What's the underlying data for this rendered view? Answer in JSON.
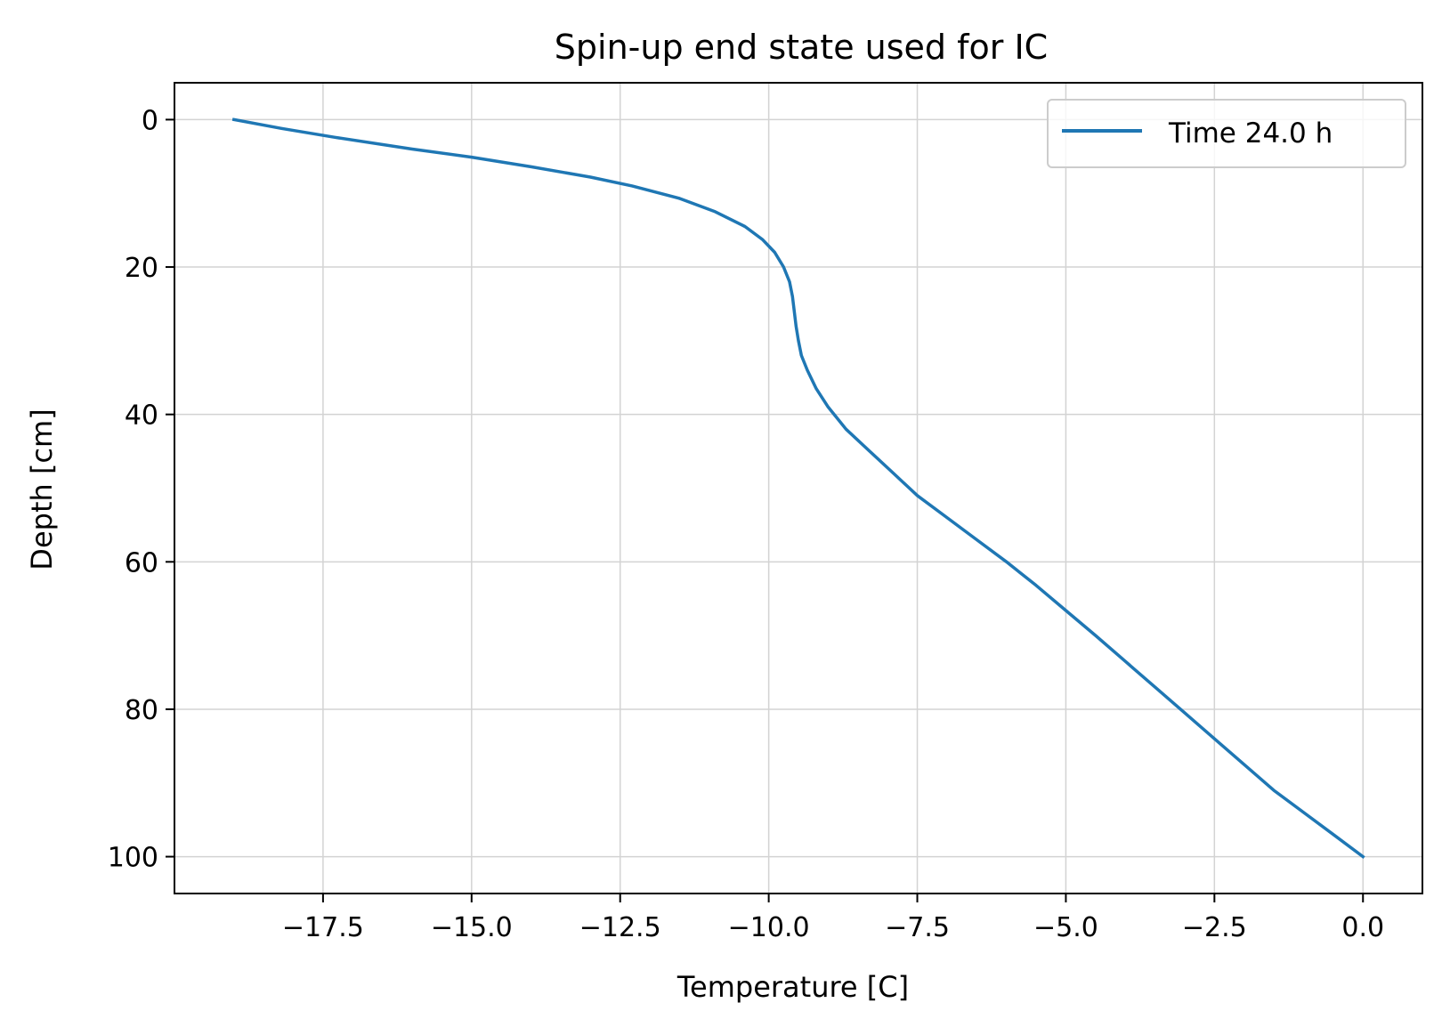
{
  "chart_data": {
    "type": "line",
    "title": "Spin-up end state used for IC",
    "xlabel": "Temperature [C]",
    "ylabel": "Depth [cm]",
    "xlim": [
      -20.0,
      1.0
    ],
    "ylim": [
      105,
      -5
    ],
    "y_inverted": true,
    "grid": true,
    "legend_position": "top-right",
    "x_ticks": [
      -17.5,
      -15.0,
      -12.5,
      -10.0,
      -7.5,
      -5.0,
      -2.5,
      0.0
    ],
    "x_tick_labels": [
      "−17.5",
      "−15.0",
      "−12.5",
      "−10.0",
      "−7.5",
      "−5.0",
      "−2.5",
      "0.0"
    ],
    "y_ticks": [
      0,
      20,
      40,
      60,
      80,
      100
    ],
    "y_tick_labels": [
      "0",
      "20",
      "40",
      "60",
      "80",
      "100"
    ],
    "series": [
      {
        "name": "Time 24.0 h",
        "color": "#1f77b4",
        "points": [
          [
            -19.0,
            0
          ],
          [
            -18.2,
            1.2
          ],
          [
            -17.3,
            2.4
          ],
          [
            -16.0,
            4.0
          ],
          [
            -15.0,
            5.1
          ],
          [
            -14.0,
            6.4
          ],
          [
            -13.0,
            7.8
          ],
          [
            -12.3,
            9.0
          ],
          [
            -11.5,
            10.7
          ],
          [
            -10.9,
            12.5
          ],
          [
            -10.4,
            14.5
          ],
          [
            -10.1,
            16.3
          ],
          [
            -9.9,
            18.0
          ],
          [
            -9.75,
            20.0
          ],
          [
            -9.65,
            22.0
          ],
          [
            -9.6,
            24.0
          ],
          [
            -9.57,
            26.0
          ],
          [
            -9.54,
            28.0
          ],
          [
            -9.5,
            30.0
          ],
          [
            -9.45,
            32.0
          ],
          [
            -9.35,
            34.0
          ],
          [
            -9.2,
            36.5
          ],
          [
            -9.0,
            39.0
          ],
          [
            -8.7,
            42.0
          ],
          [
            -8.3,
            45.0
          ],
          [
            -7.9,
            48.0
          ],
          [
            -7.5,
            51.0
          ],
          [
            -7.0,
            54.0
          ],
          [
            -6.5,
            57.0
          ],
          [
            -6.0,
            60.0
          ],
          [
            -5.5,
            63.2
          ],
          [
            -5.0,
            66.6
          ],
          [
            -4.5,
            70.0
          ],
          [
            -4.0,
            73.5
          ],
          [
            -3.5,
            77.0
          ],
          [
            -3.0,
            80.5
          ],
          [
            -2.5,
            84.0
          ],
          [
            -2.0,
            87.5
          ],
          [
            -1.5,
            91.0
          ],
          [
            -1.0,
            94.0
          ],
          [
            -0.5,
            97.0
          ],
          [
            0.0,
            100.0
          ]
        ]
      }
    ]
  }
}
